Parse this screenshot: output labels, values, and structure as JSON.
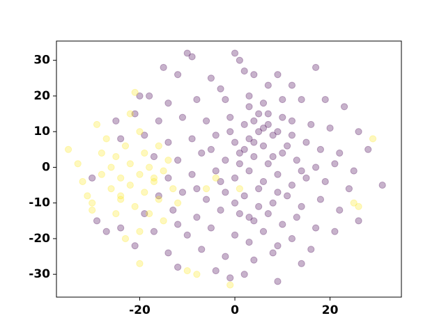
{
  "chart_data": {
    "type": "scatter",
    "xlim": [
      -37.5,
      35
    ],
    "ylim": [
      -36.4,
      35.4
    ],
    "xticks": [
      -20,
      0,
      20
    ],
    "yticks": [
      -30,
      -20,
      -10,
      0,
      10,
      20,
      30
    ],
    "series": [
      {
        "color": "#440154",
        "alpha": 0.3,
        "x": [
          -10,
          -9,
          0,
          1,
          2,
          4,
          -12,
          -15,
          -5,
          9,
          17,
          12,
          7,
          -3,
          -18,
          -14,
          -8,
          -2,
          3,
          6,
          10,
          14,
          19,
          23,
          -21,
          -16,
          -11,
          -6,
          -1,
          2,
          4,
          5,
          7,
          9,
          12,
          16,
          20,
          26,
          -24,
          -19,
          -14,
          -9,
          -4,
          0,
          3,
          6,
          8,
          11,
          15,
          18,
          22,
          28,
          -17,
          -12,
          -7,
          -2,
          1,
          4,
          7,
          10,
          13,
          17,
          21,
          25,
          -14,
          -9,
          -4,
          0,
          3,
          6,
          9,
          12,
          15,
          19,
          24,
          31,
          -16,
          -11,
          -6,
          -2,
          2,
          5,
          8,
          11,
          14,
          18,
          22,
          26,
          -19,
          -13,
          -8,
          -3,
          1,
          4,
          7,
          10,
          13,
          17,
          21,
          -24,
          -17,
          -10,
          -5,
          0,
          3,
          6,
          9,
          12,
          16,
          -21,
          -14,
          -7,
          -2,
          4,
          8,
          14,
          -12,
          -4,
          2,
          9,
          -1,
          -29,
          -27,
          -30,
          -25,
          -20,
          5,
          3,
          6,
          2,
          7,
          4,
          -1,
          10,
          1,
          -5,
          12,
          8,
          -3,
          5,
          0,
          -8,
          14,
          3,
          -12,
          9
        ],
        "values": [
          32,
          31,
          32,
          30,
          27,
          26,
          26,
          28,
          25,
          26,
          28,
          23,
          23,
          22,
          20,
          18,
          19,
          19,
          20,
          18,
          19,
          19,
          19,
          17,
          15,
          13,
          14,
          13,
          14,
          12,
          13,
          10,
          12,
          10,
          13,
          12,
          11,
          10,
          8,
          9,
          7,
          8,
          9,
          7,
          8,
          6,
          9,
          6,
          7,
          5,
          4,
          5,
          3,
          2,
          4,
          2,
          4,
          3,
          1,
          4,
          2,
          0,
          1,
          -1,
          -3,
          -2,
          -1,
          -3,
          -1,
          -4,
          -2,
          -5,
          -3,
          -4,
          -6,
          -5,
          -8,
          -7,
          -9,
          -7,
          -8,
          -6,
          -10,
          -8,
          -11,
          -9,
          -12,
          -15,
          -13,
          -12,
          -14,
          -12,
          -13,
          -15,
          -13,
          -16,
          -14,
          -17,
          -18,
          -17,
          -18,
          -19,
          -17,
          -19,
          -21,
          -18,
          -22,
          -20,
          -23,
          -22,
          -24,
          -23,
          -25,
          -26,
          -24,
          -27,
          -28,
          -29,
          -30,
          -32,
          -31,
          -15,
          -18,
          -3,
          13,
          20,
          15,
          17,
          11,
          5,
          15,
          7,
          10,
          14,
          1,
          5,
          9,
          3,
          -4,
          -11,
          -10,
          -6,
          -1,
          -14,
          -16,
          -7
        ]
      },
      {
        "color": "#fde725",
        "alpha": 0.3,
        "x": [
          -35,
          -33,
          -32,
          -31,
          -30,
          -29,
          -28,
          -28,
          -27,
          -26,
          -26,
          -25,
          -24,
          -24,
          -23,
          -22,
          -22,
          -21,
          -20,
          -20,
          -19,
          -19,
          -18,
          -18,
          -17,
          -16,
          -16,
          -15,
          -15,
          -14,
          -13,
          -12,
          -20,
          -22,
          -21,
          -25,
          -23,
          -30,
          -20,
          -10,
          -8,
          -1,
          25,
          26,
          29,
          -6,
          -4,
          1,
          -24,
          -17
        ],
        "values": [
          5,
          1,
          -4,
          -8,
          -10,
          12,
          4,
          -2,
          8,
          -6,
          0,
          3,
          -3,
          -9,
          6,
          1,
          -5,
          -11,
          10,
          -2,
          4,
          -7,
          -13,
          0,
          -4,
          6,
          -9,
          -1,
          -15,
          2,
          -6,
          -10,
          -18,
          15,
          21,
          -13,
          -20,
          -12,
          -27,
          -29,
          -30,
          -33,
          -10,
          -11,
          8,
          -6,
          -3,
          -6,
          -8,
          -3
        ]
      }
    ]
  }
}
